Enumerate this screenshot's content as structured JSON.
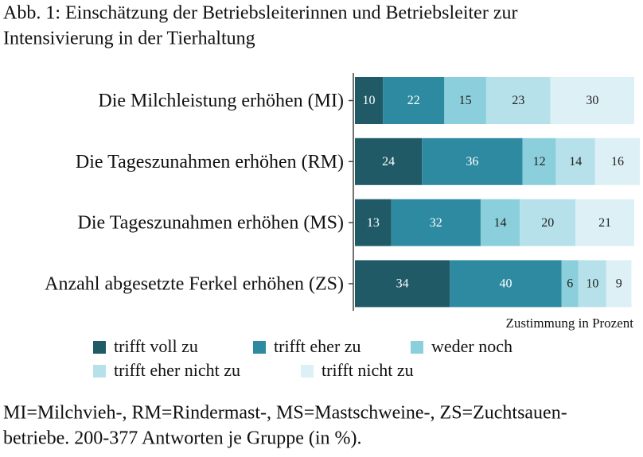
{
  "chart_data": {
    "type": "stacked-bar-horizontal",
    "title": [
      "Abb. 1: Einschätzung der Betriebsleiterinnen und Betriebsleiter zur",
      "Intensivierung in der Tierhaltung"
    ],
    "categories": [
      "Die Milchleistung erhöhen (MI)",
      "Die Tageszunahmen erhöhen (RM)",
      "Die Tageszunahmen erhöhen (MS)",
      "Anzahl abgesetzte Ferkel erhöhen (ZS)"
    ],
    "series": [
      {
        "name": "trifft voll zu",
        "color": "#1f5a66",
        "values": [
          10,
          24,
          13,
          34
        ]
      },
      {
        "name": "trifft eher zu",
        "color": "#2e8aa0",
        "values": [
          22,
          36,
          32,
          40
        ]
      },
      {
        "name": "weder noch",
        "color": "#8ccfdc",
        "values": [
          15,
          12,
          14,
          6
        ]
      },
      {
        "name": "trifft eher nicht zu",
        "color": "#b7e1ea",
        "values": [
          23,
          14,
          20,
          10
        ]
      },
      {
        "name": "trifft nicht zu",
        "color": "#ddf0f5",
        "values": [
          30,
          16,
          21,
          9
        ]
      }
    ],
    "x_label": "Zustimmung in Prozent",
    "note": [
      "MI=Milchvieh-, RM=Rindermast-, MS=Mastschweine-, ZS=Zuchtsauen-",
      "betriebe. 200-377 Antworten je Gruppe (in %)."
    ]
  }
}
